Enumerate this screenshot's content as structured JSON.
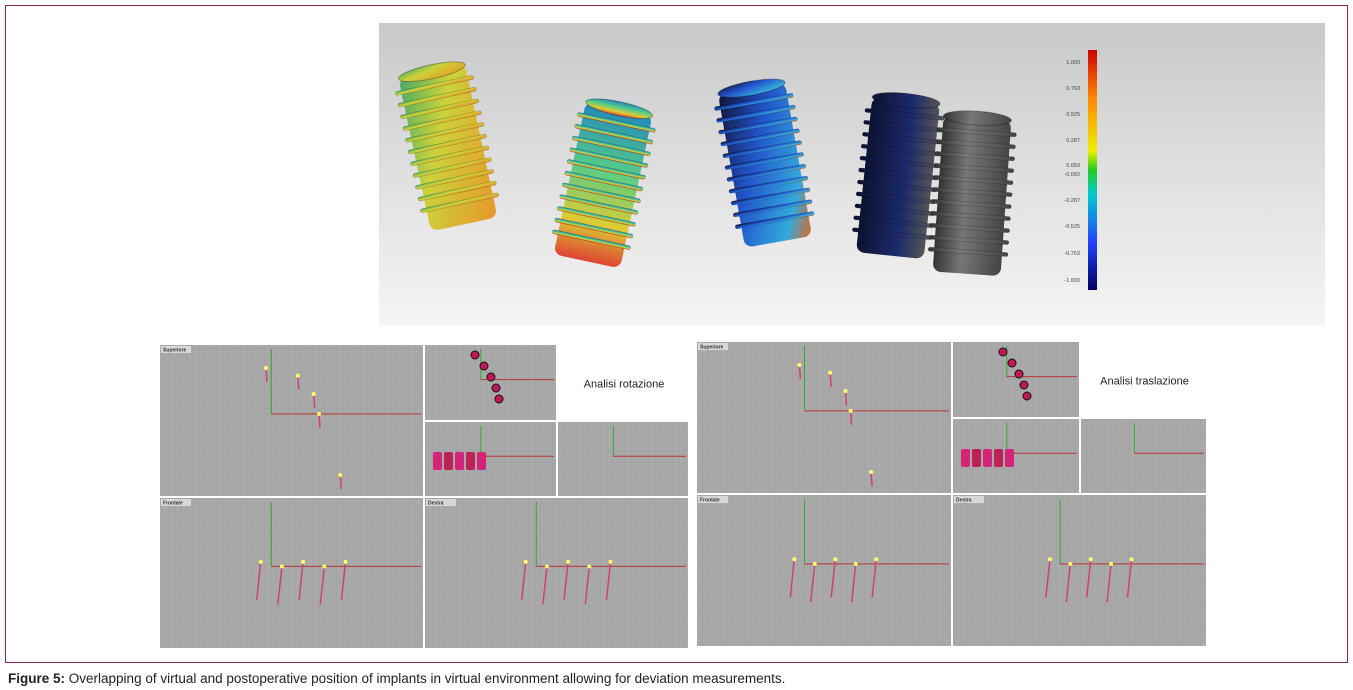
{
  "figure": {
    "heatmap": {
      "scale_labels": [
        "1.000",
        "0.763",
        "0.525",
        "0.287",
        "0.050",
        "-0.050",
        "-0.287",
        "-0.525",
        "-0.763",
        "-1.000"
      ]
    },
    "panels": [
      {
        "note": "Analisi rotazione",
        "viewports": [
          "Superiore",
          "Frontale",
          "Destra"
        ]
      },
      {
        "note": "Analisi traslazione",
        "viewports": [
          "Superiore",
          "Frontale",
          "Destra"
        ]
      }
    ],
    "caption": {
      "label": "Figure 5:",
      "text": "Overlapping of virtual and postoperative position of implants in virtual environment allowing for deviation measurements."
    }
  }
}
